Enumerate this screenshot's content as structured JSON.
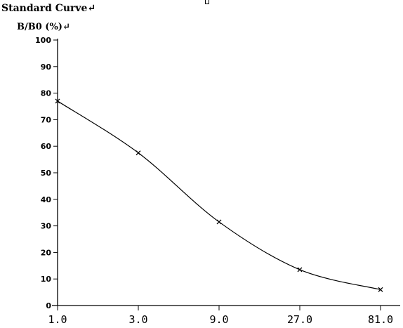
{
  "chart_data": {
    "type": "line",
    "title": "Standard Curve↵",
    "ylabel": "B/B0 (%)↵",
    "xlabel": "",
    "x_scale": "log",
    "x": [
      1.0,
      3.0,
      9.0,
      27.0,
      81.0
    ],
    "x_tick_labels": [
      "1.0",
      "3.0",
      "9.0",
      "27.0",
      "81.0"
    ],
    "ylim": [
      0,
      100
    ],
    "y_ticks": [
      0,
      10,
      20,
      30,
      40,
      50,
      60,
      70,
      80,
      90,
      100
    ],
    "y_tick_labels": [
      "0",
      "10",
      "20",
      "30",
      "40",
      "50",
      "60",
      "70",
      "80",
      "90",
      "100"
    ],
    "series": [
      {
        "values": [
          77,
          57.5,
          31.5,
          13.5,
          6
        ]
      }
    ],
    "grid": false,
    "marker": "x",
    "curve": "smooth"
  }
}
